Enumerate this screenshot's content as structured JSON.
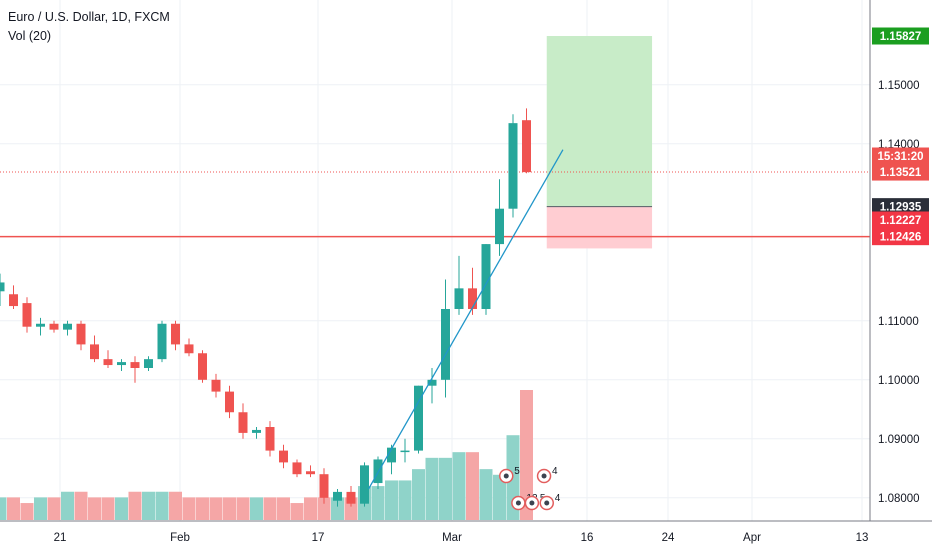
{
  "header": {
    "symbol_line": "Euro / U.S. Dollar, 1D, FXCM",
    "indicator_line": "Vol (20)"
  },
  "colors": {
    "up": "#26a69a",
    "down": "#ef5350",
    "vol_up": "#8fd3c9",
    "vol_down": "#f5a6a6",
    "trendline": "#2196c9",
    "target_zone": "#c8ecc8",
    "stop_zone": "#ffcdd2",
    "grid": "#eef1f5"
  },
  "chart_data": {
    "type": "candlestick",
    "symbol": "EURUSD",
    "interval": "1D",
    "ylim": [
      1.072,
      1.1535
    ],
    "y_ticks": [
      "1.15000",
      "1.14000",
      "1.11000",
      "1.10000",
      "1.09000",
      "1.08000"
    ],
    "x_ticks": [
      "21",
      "Feb",
      "17",
      "Mar",
      "16",
      "24",
      "Apr",
      "13"
    ],
    "candles": [
      {
        "o": 1.115,
        "h": 1.118,
        "l": 1.1125,
        "c": 1.1165
      },
      {
        "o": 1.1145,
        "h": 1.116,
        "l": 1.112,
        "c": 1.1125
      },
      {
        "o": 1.113,
        "h": 1.114,
        "l": 1.108,
        "c": 1.109
      },
      {
        "o": 1.109,
        "h": 1.1105,
        "l": 1.1075,
        "c": 1.1095
      },
      {
        "o": 1.1095,
        "h": 1.11,
        "l": 1.108,
        "c": 1.1085
      },
      {
        "o": 1.1085,
        "h": 1.11,
        "l": 1.1075,
        "c": 1.1095
      },
      {
        "o": 1.1095,
        "h": 1.11,
        "l": 1.105,
        "c": 1.106
      },
      {
        "o": 1.106,
        "h": 1.1075,
        "l": 1.103,
        "c": 1.1035
      },
      {
        "o": 1.1035,
        "h": 1.105,
        "l": 1.102,
        "c": 1.1025
      },
      {
        "o": 1.1025,
        "h": 1.1035,
        "l": 1.1015,
        "c": 1.103
      },
      {
        "o": 1.103,
        "h": 1.104,
        "l": 1.0995,
        "c": 1.102
      },
      {
        "o": 1.102,
        "h": 1.104,
        "l": 1.1015,
        "c": 1.1035
      },
      {
        "o": 1.1035,
        "h": 1.11,
        "l": 1.103,
        "c": 1.1095
      },
      {
        "o": 1.1095,
        "h": 1.11,
        "l": 1.105,
        "c": 1.106
      },
      {
        "o": 1.106,
        "h": 1.107,
        "l": 1.104,
        "c": 1.1045
      },
      {
        "o": 1.1045,
        "h": 1.105,
        "l": 1.0995,
        "c": 1.1
      },
      {
        "o": 1.1,
        "h": 1.101,
        "l": 1.097,
        "c": 1.098
      },
      {
        "o": 1.098,
        "h": 1.099,
        "l": 1.0935,
        "c": 1.0945
      },
      {
        "o": 1.0945,
        "h": 1.096,
        "l": 1.09,
        "c": 1.091
      },
      {
        "o": 1.091,
        "h": 1.092,
        "l": 1.09,
        "c": 1.0915
      },
      {
        "o": 1.092,
        "h": 1.093,
        "l": 1.087,
        "c": 1.088
      },
      {
        "o": 1.088,
        "h": 1.089,
        "l": 1.085,
        "c": 1.086
      },
      {
        "o": 1.086,
        "h": 1.0865,
        "l": 1.0835,
        "c": 1.084
      },
      {
        "o": 1.0845,
        "h": 1.0855,
        "l": 1.0835,
        "c": 1.084
      },
      {
        "o": 1.084,
        "h": 1.085,
        "l": 1.079,
        "c": 1.08
      },
      {
        "o": 1.0795,
        "h": 1.0815,
        "l": 1.0785,
        "c": 1.081
      },
      {
        "o": 1.081,
        "h": 1.082,
        "l": 1.0785,
        "c": 1.079
      },
      {
        "o": 1.079,
        "h": 1.086,
        "l": 1.0785,
        "c": 1.0855
      },
      {
        "o": 1.0825,
        "h": 1.087,
        "l": 1.0815,
        "c": 1.0865
      },
      {
        "o": 1.086,
        "h": 1.089,
        "l": 1.084,
        "c": 1.0885
      },
      {
        "o": 1.088,
        "h": 1.09,
        "l": 1.086,
        "c": 1.088
      },
      {
        "o": 1.088,
        "h": 1.099,
        "l": 1.0875,
        "c": 1.099
      },
      {
        "o": 1.099,
        "h": 1.102,
        "l": 1.096,
        "c": 1.1
      },
      {
        "o": 1.1,
        "h": 1.117,
        "l": 1.097,
        "c": 1.112
      },
      {
        "o": 1.112,
        "h": 1.121,
        "l": 1.111,
        "c": 1.1155
      },
      {
        "o": 1.1155,
        "h": 1.119,
        "l": 1.111,
        "c": 1.112
      },
      {
        "o": 1.112,
        "h": 1.123,
        "l": 1.111,
        "c": 1.123
      },
      {
        "o": 1.123,
        "h": 1.134,
        "l": 1.121,
        "c": 1.129
      },
      {
        "o": 1.129,
        "h": 1.145,
        "l": 1.1275,
        "c": 1.1435
      },
      {
        "o": 1.144,
        "h": 1.146,
        "l": 1.135,
        "c": 1.1352
      }
    ],
    "volumes": [
      4,
      4,
      3,
      4,
      4,
      5,
      5,
      4,
      4,
      4,
      5,
      5,
      5,
      5,
      4,
      4,
      4,
      4,
      4,
      4,
      4,
      4,
      3,
      4,
      4,
      4,
      4,
      6,
      6,
      7,
      7,
      9,
      11,
      11,
      12,
      12,
      9,
      8,
      15,
      23
    ],
    "trendline": {
      "from": {
        "index": 27.3,
        "price": 1.0815
      },
      "to": {
        "index": 41.7,
        "price": 1.139
      }
    },
    "position": {
      "type": "long",
      "entry": 1.12935,
      "stop": 1.12227,
      "target": 1.15827,
      "start_index": 40.5,
      "end_index": 48.3
    },
    "horizontal_lines": [
      {
        "price": 1.12426,
        "style": "solid",
        "color": "#ef5350"
      },
      {
        "price": 1.13521,
        "style": "dotted",
        "color": "#ef5350"
      }
    ],
    "price_labels": [
      {
        "text": "1.15827",
        "price": 1.15827,
        "color": "#1b9e20"
      },
      {
        "text": "1.13521",
        "price": 1.13521,
        "color": "#ef5350"
      },
      {
        "text": "15:31:20",
        "price": 1.132,
        "color": "#ef5350"
      },
      {
        "text": "1.12935",
        "price": 1.12935,
        "color": "#2a2e39"
      },
      {
        "text": "1.12426",
        "price": 1.12426,
        "color": "#f23645"
      },
      {
        "text": "1.12227",
        "price": 1.12227,
        "color": "#f23645"
      }
    ],
    "event_markers": [
      {
        "index": 37.5,
        "count": "5"
      },
      {
        "index": 40.3,
        "count": "4"
      },
      {
        "index": 38.4,
        "count": "12"
      },
      {
        "index": 39.4,
        "count": "5"
      },
      {
        "index": 40.5,
        "count": "4"
      }
    ]
  }
}
